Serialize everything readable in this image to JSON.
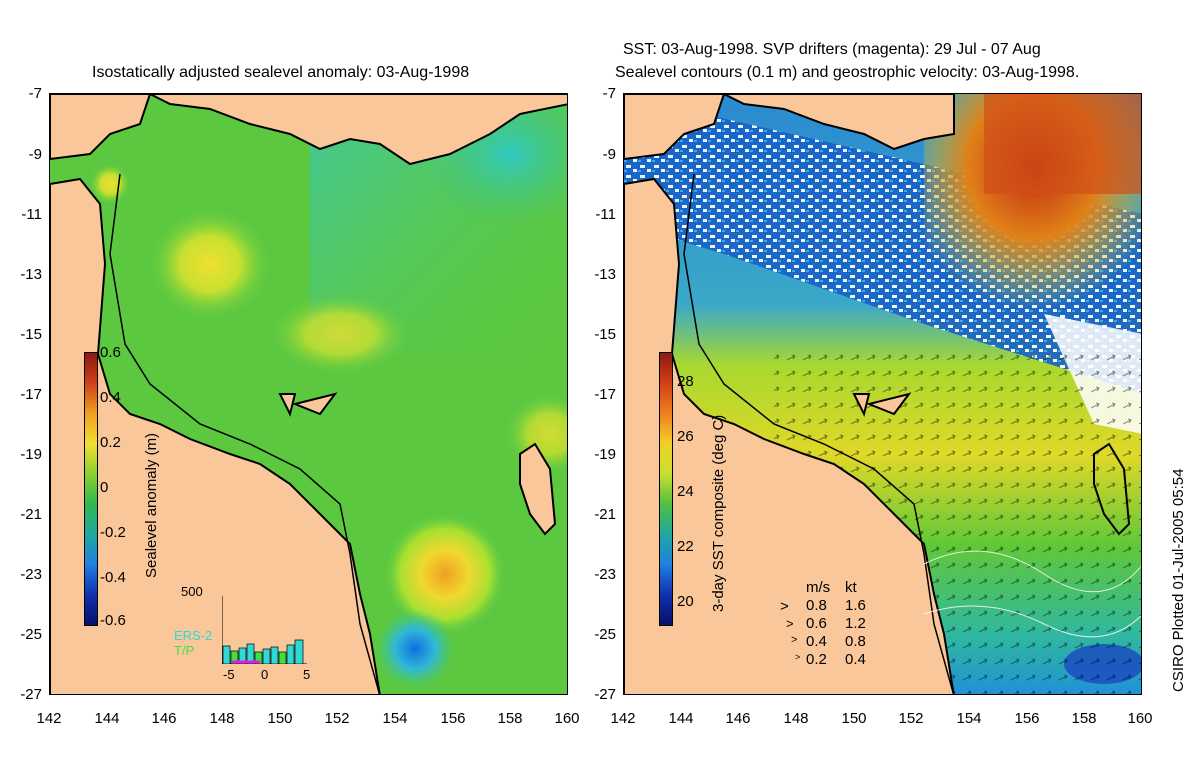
{
  "left_title": "Isostatically adjusted sealevel anomaly: 03-Aug-1998",
  "right_title_line1": "SST: 03-Aug-1998. SVP drifters (magenta): 29 Jul - 07 Aug",
  "right_title_line2": "Sealevel contours (0.1 m) and geostrophic velocity: 03-Aug-1998.",
  "y_ticks": [
    "-7",
    "-9",
    "-11",
    "-13",
    "-15",
    "-17",
    "-19",
    "-21",
    "-23",
    "-25",
    "-27"
  ],
  "x_ticks": [
    "142",
    "144",
    "146",
    "148",
    "150",
    "152",
    "154",
    "156",
    "158",
    "160"
  ],
  "left_colorbar": {
    "label": "Sealevel anomaly (m)",
    "ticks": [
      "0.6",
      "0.4",
      "0.2",
      "0",
      "-0.2",
      "-0.4",
      "-0.6"
    ]
  },
  "right_colorbar": {
    "label": "3-day SST composite (deg C)",
    "ticks": [
      "28",
      "26",
      "24",
      "22",
      "20"
    ]
  },
  "histogram": {
    "ymax_label": "500",
    "x_ticks": [
      "-5",
      "0",
      "5"
    ],
    "series": [
      "ERS-2",
      "T/P"
    ],
    "colors": {
      "ERS-2": "#30d8d8",
      "T/P": "#40e040"
    }
  },
  "velocity_legend": {
    "headers": [
      "m/s",
      "kt"
    ],
    "rows": [
      [
        "0.8",
        "1.6"
      ],
      [
        "0.6",
        "1.2"
      ],
      [
        "0.4",
        "0.8"
      ],
      [
        "0.2",
        "0.4"
      ]
    ]
  },
  "credit": "CSIRO Plotted 01-Jul-2005 05:54",
  "colors": {
    "land": "#f9c79a",
    "sla_base": "#5cc840",
    "sst_base": "#3cb838"
  }
}
